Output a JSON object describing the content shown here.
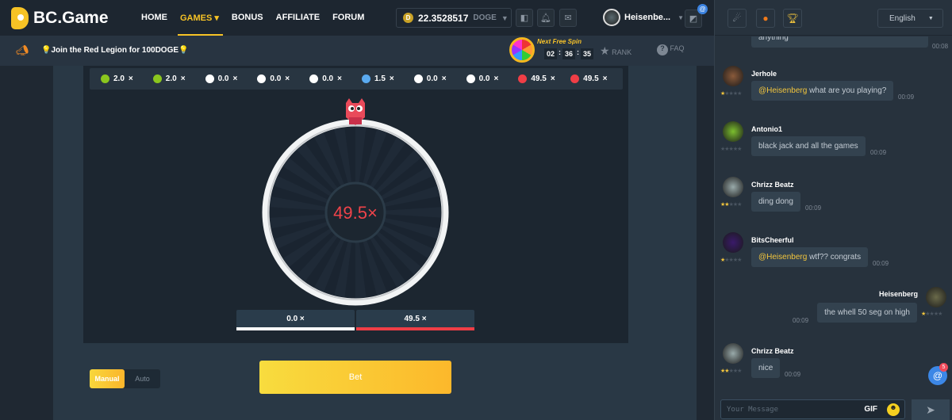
{
  "header": {
    "brand": "BC.Game",
    "nav": [
      "HOME",
      "GAMES",
      "BONUS",
      "AFFILIATE",
      "FORUM"
    ],
    "active_nav": "GAMES",
    "balance": "22.3528517",
    "currency": "DOGE",
    "username": "Heisenbe...",
    "notif_badge": "@"
  },
  "subheader": {
    "announcement": "Join the Red Legion for 100DOGE",
    "free_spin_label": "Next Free Spin",
    "timer": [
      "02",
      "36",
      "35"
    ],
    "rank": "RANK",
    "faq": "FAQ"
  },
  "results": [
    {
      "value": "2.0",
      "color": "#8bc61e"
    },
    {
      "value": "2.0",
      "color": "#8bc61e"
    },
    {
      "value": "0.0",
      "color": "#ffffff"
    },
    {
      "value": "0.0",
      "color": "#ffffff"
    },
    {
      "value": "0.0",
      "color": "#ffffff"
    },
    {
      "value": "1.5",
      "color": "#5aaaf0"
    },
    {
      "value": "0.0",
      "color": "#ffffff"
    },
    {
      "value": "0.0",
      "color": "#ffffff"
    },
    {
      "value": "49.5",
      "color": "#f03e46"
    },
    {
      "value": "49.5",
      "color": "#f03e46"
    }
  ],
  "multiplier_suffix": "×",
  "wheel": {
    "result": "49.5×",
    "result_color": "#f0434a"
  },
  "payouts": [
    {
      "label": "0.0 ×",
      "color": "#ffffff"
    },
    {
      "label": "49.5 ×",
      "color": "#f03e46"
    }
  ],
  "controls": {
    "modes": [
      "Manual",
      "Auto"
    ],
    "active_mode": "Manual",
    "bet_label": "Bet"
  },
  "chat": {
    "language": "English",
    "input_placeholder": "Your Message",
    "gif_label": "GIF",
    "mention_count": "5",
    "messages": [
      {
        "user": "",
        "text": "anything",
        "time": "00:08",
        "stars": 0
      },
      {
        "user": "Jerhole",
        "mention": "@Heisenberg",
        "text": "what are you playing?",
        "time": "00:09",
        "stars": 1
      },
      {
        "user": "Antonio1",
        "mention": "",
        "text": "black jack and all the games",
        "time": "00:09",
        "stars": 0
      },
      {
        "user": "Chrizz Beatz",
        "mention": "",
        "text": "ding dong",
        "time": "00:09",
        "stars": 2
      },
      {
        "user": "BitsCheerful",
        "mention": "@Heisenberg",
        "text": "wtf?? congrats",
        "time": "00:09",
        "stars": 1
      },
      {
        "user": "Heisenberg",
        "mention": "",
        "text": "the whell 50 seg on high",
        "time": "00:09",
        "stars": 1,
        "own": true
      },
      {
        "user": "Chrizz Beatz",
        "mention": "",
        "text": "nice",
        "time": "00:09",
        "stars": 2
      }
    ]
  }
}
